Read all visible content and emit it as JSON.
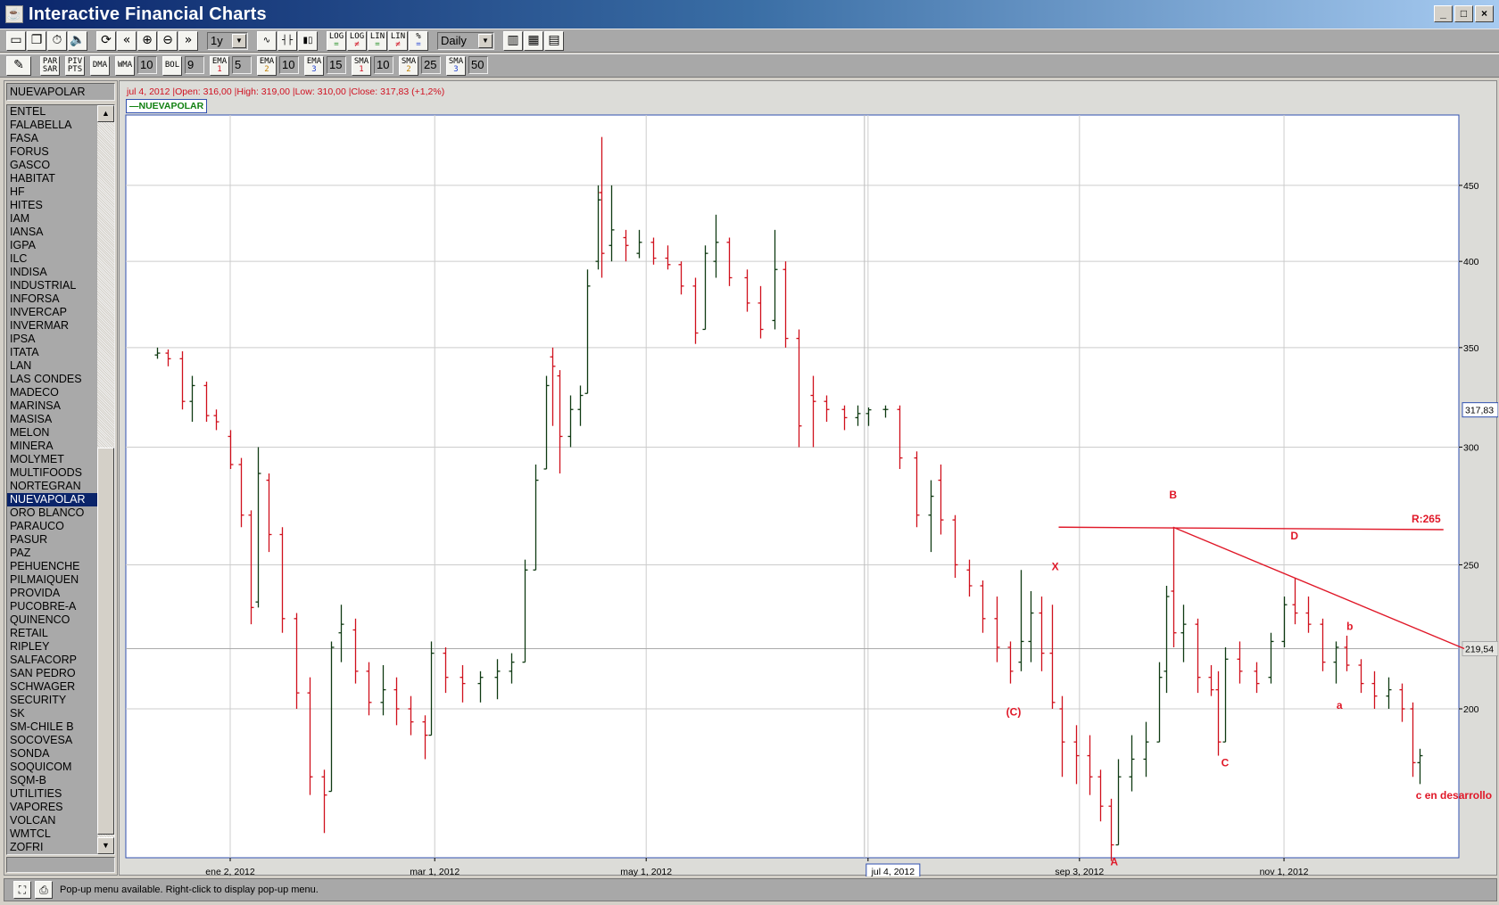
{
  "window": {
    "title": "Interactive Financial Charts",
    "controls": [
      "minimize",
      "maximize",
      "close"
    ]
  },
  "toolbar1": {
    "groups": [
      [
        {
          "icon": "new-window-icon",
          "glyph": "▭"
        },
        {
          "icon": "restore-windows-icon",
          "glyph": "❐"
        },
        {
          "icon": "stopwatch-icon",
          "glyph": "⏱"
        },
        {
          "icon": "sound-icon",
          "glyph": "🔈"
        }
      ],
      [
        {
          "icon": "refresh-icon",
          "glyph": "⟳"
        },
        {
          "icon": "scroll-back-icon",
          "glyph": "«"
        },
        {
          "icon": "zoom-in-icon",
          "glyph": "⊕"
        },
        {
          "icon": "zoom-out-icon",
          "glyph": "⊖"
        },
        {
          "icon": "scroll-forward-icon",
          "glyph": "»"
        }
      ]
    ],
    "period": "1y",
    "chart_types": [
      {
        "icon": "line-chart-icon",
        "glyph": "∿"
      },
      {
        "icon": "ohlc-bars-icon",
        "glyph": "┤├"
      },
      {
        "icon": "candlestick-icon",
        "glyph": "▮▯"
      }
    ],
    "scales": [
      {
        "top": "LOG",
        "bot": "="
      },
      {
        "top": "LOG",
        "bot": "≠"
      },
      {
        "top": "LIN",
        "bot": "="
      },
      {
        "top": "LIN",
        "bot": "≠"
      },
      {
        "top": "%",
        "bot": "="
      }
    ],
    "interval": "Daily",
    "tools": [
      {
        "icon": "chart-settings-icon",
        "glyph": "▥"
      },
      {
        "icon": "color-scheme-icon",
        "glyph": "▦"
      },
      {
        "icon": "chart-window-icon",
        "glyph": "▤"
      }
    ]
  },
  "toolbar2": {
    "drawing_icon": "✎",
    "indicators": [
      {
        "top": "PAR",
        "bot": "SAR"
      },
      {
        "top": "PIV",
        "bot": "PTS"
      },
      {
        "top": "DMA",
        "bot": ""
      },
      {
        "top": "WMA",
        "bot": "",
        "value": "10"
      },
      {
        "top": "BOL",
        "bot": "",
        "value": "9"
      },
      {
        "top": "EMA",
        "bot": "1",
        "value": "5"
      },
      {
        "top": "EMA",
        "bot": "2",
        "value": "10"
      },
      {
        "top": "EMA",
        "bot": "3",
        "value": "15"
      },
      {
        "top": "SMA",
        "bot": "1",
        "value": "10"
      },
      {
        "top": "SMA",
        "bot": "2",
        "value": "25"
      },
      {
        "top": "SMA",
        "bot": "3",
        "value": "50"
      }
    ]
  },
  "sidebar": {
    "selected": "NUEVAPOLAR",
    "items": [
      "ENTEL",
      "FALABELLA",
      "FASA",
      "FORUS",
      "GASCO",
      "HABITAT",
      "HF",
      "HITES",
      "IAM",
      "IANSA",
      "IGPA",
      "ILC",
      "INDISA",
      "INDUSTRIAL",
      "INFORSA",
      "INVERCAP",
      "INVERMAR",
      "IPSA",
      "ITATA",
      "LAN",
      "LAS CONDES",
      "MADECO",
      "MARINSA",
      "MASISA",
      "MELON",
      "MINERA",
      "MOLYMET",
      "MULTIFOODS",
      "NORTEGRAN",
      "NUEVAPOLAR",
      "ORO BLANCO",
      "PARAUCO",
      "PASUR",
      "PAZ",
      "PEHUENCHE",
      "PILMAIQUEN",
      "PROVIDA",
      "PUCOBRE-A",
      "QUINENCO",
      "RETAIL",
      "RIPLEY",
      "SALFACORP",
      "SAN PEDRO",
      "SCHWAGER",
      "SECURITY",
      "SK",
      "SM-CHILE B",
      "SOCOVESA",
      "SONDA",
      "SOQUICOM",
      "SQM-B",
      "UTILITIES",
      "VAPORES",
      "VOLCAN",
      "WMTCL",
      "ZOFRI"
    ]
  },
  "chart": {
    "info": "jul 4, 2012 |Open: 316,00 |High: 319,00 |Low: 310,00 |Close: 317,83 (+1,2%)",
    "legend": "—NUEVAPOLAR"
  },
  "chart_data": {
    "type": "ohlc",
    "symbol": "NUEVAPOLAR",
    "yscale": "log",
    "ylim": [
      150,
      500
    ],
    "xlim": [
      "2011-11-25",
      "2013-01-05"
    ],
    "grid": true,
    "colors": {
      "up": "#0f3a12",
      "down": "#d0101c",
      "annotation": "#e01828",
      "grid": "#cccccc"
    },
    "yticks": [
      200,
      250,
      300,
      350,
      400,
      450
    ],
    "ytick_labels": [
      "200",
      "250",
      "300",
      "350",
      "400",
      "450"
    ],
    "xticks": [
      "2012-01-02",
      "2012-03-01",
      "2012-05-01",
      "2012-07-04",
      "2012-09-03",
      "2012-11-01"
    ],
    "xtick_labels": [
      "ene 2, 2012",
      "mar 1, 2012",
      "may 1, 2012",
      "jul 4, 2012",
      "sep 3, 2012",
      "nov 1, 2012"
    ],
    "cursor": {
      "date": "2012-07-04",
      "label": "jul 4, 2012"
    },
    "price_markers": [
      {
        "value": 317.83,
        "label": "317,83"
      },
      {
        "value": 219.54,
        "label": "219,54"
      }
    ],
    "bars_columns": [
      "date",
      "open",
      "high",
      "low",
      "close"
    ],
    "bars": [
      [
        "2011-12-12",
        346,
        350,
        344,
        347
      ],
      [
        "2011-12-15",
        347,
        349,
        340,
        344
      ],
      [
        "2011-12-19",
        344,
        348,
        318,
        322
      ],
      [
        "2011-12-22",
        322,
        335,
        312,
        330
      ],
      [
        "2011-12-26",
        330,
        332,
        312,
        315
      ],
      [
        "2011-12-29",
        315,
        318,
        308,
        312
      ],
      [
        "2012-01-02",
        305,
        308,
        290,
        292
      ],
      [
        "2012-01-05",
        292,
        295,
        265,
        270
      ],
      [
        "2012-01-08",
        270,
        272,
        228,
        234
      ],
      [
        "2012-01-10",
        236,
        300,
        234,
        288
      ],
      [
        "2012-01-13",
        285,
        288,
        255,
        262
      ],
      [
        "2012-01-17",
        262,
        265,
        225,
        230
      ],
      [
        "2012-01-21",
        230,
        232,
        200,
        205
      ],
      [
        "2012-01-25",
        205,
        210,
        175,
        180
      ],
      [
        "2012-01-29",
        180,
        182,
        165,
        175
      ],
      [
        "2012-01-31",
        176,
        222,
        176,
        220
      ],
      [
        "2012-02-03",
        225,
        235,
        215,
        228
      ],
      [
        "2012-02-07",
        226,
        230,
        208,
        212
      ],
      [
        "2012-02-11",
        212,
        215,
        198,
        202
      ],
      [
        "2012-02-15",
        202,
        214,
        198,
        206
      ],
      [
        "2012-02-19",
        206,
        210,
        195,
        200
      ],
      [
        "2012-02-23",
        200,
        204,
        192,
        196
      ],
      [
        "2012-02-27",
        196,
        198,
        185,
        192
      ],
      [
        "2012-02-29",
        192,
        222,
        192,
        218
      ],
      [
        "2012-03-04",
        218,
        220,
        205,
        210
      ],
      [
        "2012-03-09",
        210,
        214,
        202,
        208
      ],
      [
        "2012-03-14",
        208,
        212,
        202,
        210
      ],
      [
        "2012-03-19",
        210,
        216,
        203,
        212
      ],
      [
        "2012-03-23",
        212,
        218,
        208,
        215
      ],
      [
        "2012-03-27",
        215,
        252,
        215,
        248
      ],
      [
        "2012-03-30",
        248,
        292,
        248,
        285
      ],
      [
        "2012-04-02",
        290,
        335,
        290,
        330
      ],
      [
        "2012-04-04",
        345,
        350,
        310,
        340
      ],
      [
        "2012-04-06",
        335,
        338,
        288,
        305
      ],
      [
        "2012-04-09",
        305,
        325,
        300,
        318
      ],
      [
        "2012-04-12",
        318,
        330,
        310,
        325
      ],
      [
        "2012-04-14",
        326,
        395,
        326,
        385
      ],
      [
        "2012-04-17",
        400,
        450,
        395,
        440
      ],
      [
        "2012-04-18",
        445,
        485,
        390,
        405
      ],
      [
        "2012-04-21",
        410,
        450,
        400,
        420
      ],
      [
        "2012-04-25",
        415,
        420,
        400,
        410
      ],
      [
        "2012-04-29",
        405,
        420,
        402,
        412
      ],
      [
        "2012-05-03",
        412,
        415,
        398,
        402
      ],
      [
        "2012-05-07",
        402,
        410,
        395,
        398
      ],
      [
        "2012-05-11",
        398,
        400,
        380,
        385
      ],
      [
        "2012-05-15",
        385,
        390,
        352,
        358
      ],
      [
        "2012-05-18",
        360,
        410,
        360,
        405
      ],
      [
        "2012-05-21",
        400,
        430,
        390,
        412
      ],
      [
        "2012-05-25",
        412,
        415,
        385,
        390
      ],
      [
        "2012-05-30",
        390,
        395,
        370,
        375
      ],
      [
        "2012-06-03",
        375,
        385,
        355,
        360
      ],
      [
        "2012-06-07",
        365,
        420,
        360,
        395
      ],
      [
        "2012-06-10",
        395,
        400,
        350,
        355
      ],
      [
        "2012-06-14",
        355,
        360,
        300,
        310
      ],
      [
        "2012-06-18",
        325,
        335,
        300,
        322
      ],
      [
        "2012-06-22",
        322,
        325,
        312,
        318
      ],
      [
        "2012-06-27",
        318,
        320,
        308,
        314
      ],
      [
        "2012-07-01",
        314,
        320,
        310,
        316
      ],
      [
        "2012-07-04",
        316,
        319,
        310,
        317.83
      ],
      [
        "2012-07-09",
        318,
        320,
        314,
        318
      ],
      [
        "2012-07-13",
        318,
        320,
        290,
        295
      ],
      [
        "2012-07-18",
        295,
        298,
        265,
        270
      ],
      [
        "2012-07-22",
        270,
        285,
        255,
        278
      ],
      [
        "2012-07-25",
        285,
        292,
        262,
        268
      ],
      [
        "2012-07-29",
        268,
        270,
        245,
        250
      ],
      [
        "2012-08-02",
        248,
        252,
        238,
        242
      ],
      [
        "2012-08-06",
        242,
        244,
        225,
        230
      ],
      [
        "2012-08-10",
        230,
        238,
        215,
        220
      ],
      [
        "2012-08-14",
        220,
        222,
        208,
        212
      ],
      [
        "2012-08-17",
        215,
        248,
        212,
        222
      ],
      [
        "2012-08-20",
        222,
        240,
        215,
        232
      ],
      [
        "2012-08-23",
        232,
        238,
        212,
        218
      ],
      [
        "2012-08-26",
        218,
        235,
        200,
        202
      ],
      [
        "2012-08-29",
        200,
        204,
        180,
        190
      ],
      [
        "2012-09-02",
        190,
        195,
        178,
        186
      ],
      [
        "2012-09-06",
        186,
        192,
        175,
        180
      ],
      [
        "2012-09-09",
        180,
        182,
        168,
        172
      ],
      [
        "2012-09-12",
        172,
        174,
        158,
        162
      ],
      [
        "2012-09-14",
        162,
        185,
        162,
        180
      ],
      [
        "2012-09-18",
        180,
        192,
        176,
        185
      ],
      [
        "2012-09-22",
        185,
        196,
        180,
        190
      ],
      [
        "2012-09-26",
        190,
        215,
        190,
        210
      ],
      [
        "2012-09-28",
        212,
        242,
        205,
        238
      ],
      [
        "2012-09-30",
        240,
        265,
        220,
        225
      ],
      [
        "2012-10-03",
        225,
        235,
        215,
        228
      ],
      [
        "2012-10-07",
        228,
        230,
        205,
        210
      ],
      [
        "2012-10-11",
        210,
        214,
        204,
        206
      ],
      [
        "2012-10-13",
        206,
        212,
        186,
        190
      ],
      [
        "2012-10-15",
        190,
        220,
        190,
        216
      ],
      [
        "2012-10-19",
        216,
        222,
        208,
        212
      ],
      [
        "2012-10-24",
        212,
        215,
        205,
        208
      ],
      [
        "2012-10-28",
        210,
        225,
        208,
        222
      ],
      [
        "2012-11-01",
        222,
        238,
        220,
        235
      ],
      [
        "2012-11-04",
        235,
        245,
        228,
        232
      ],
      [
        "2012-11-08",
        232,
        238,
        225,
        228
      ],
      [
        "2012-11-12",
        228,
        230,
        212,
        215
      ],
      [
        "2012-11-16",
        215,
        222,
        208,
        220
      ],
      [
        "2012-11-19",
        220,
        224,
        212,
        214
      ],
      [
        "2012-11-23",
        214,
        216,
        205,
        208
      ],
      [
        "2012-11-27",
        208,
        212,
        200,
        204
      ],
      [
        "2012-12-01",
        204,
        210,
        200,
        206
      ],
      [
        "2012-12-05",
        206,
        208,
        196,
        200
      ],
      [
        "2012-12-08",
        200,
        202,
        180,
        184
      ],
      [
        "2012-12-10",
        184,
        188,
        178,
        186
      ]
    ],
    "lines": [
      {
        "name": "resistance",
        "from": [
          "2012-08-28",
          265
        ],
        "to": [
          "2012-12-17",
          264
        ]
      },
      {
        "name": "trendline",
        "from": [
          "2012-09-30",
          265
        ],
        "to": [
          "2012-12-23",
          219.54
        ]
      }
    ],
    "annotations": [
      {
        "text": "R:265",
        "date": "2012-12-12",
        "price": 267
      },
      {
        "text": "B",
        "date": "2012-09-30",
        "price": 277
      },
      {
        "text": "X",
        "date": "2012-08-27",
        "price": 248
      },
      {
        "text": "(C)",
        "date": "2012-08-15",
        "price": 198
      },
      {
        "text": "A",
        "date": "2012-09-13",
        "price": 157
      },
      {
        "text": "C",
        "date": "2012-10-15",
        "price": 183
      },
      {
        "text": "D",
        "date": "2012-11-04",
        "price": 260
      },
      {
        "text": "b",
        "date": "2012-11-20",
        "price": 226
      },
      {
        "text": "a",
        "date": "2012-11-17",
        "price": 200
      },
      {
        "text": "c en desarrollo",
        "date": "2012-12-20",
        "price": 174
      }
    ]
  },
  "statusbar": {
    "message": "Pop-up menu available. Right-click to display pop-up menu."
  }
}
